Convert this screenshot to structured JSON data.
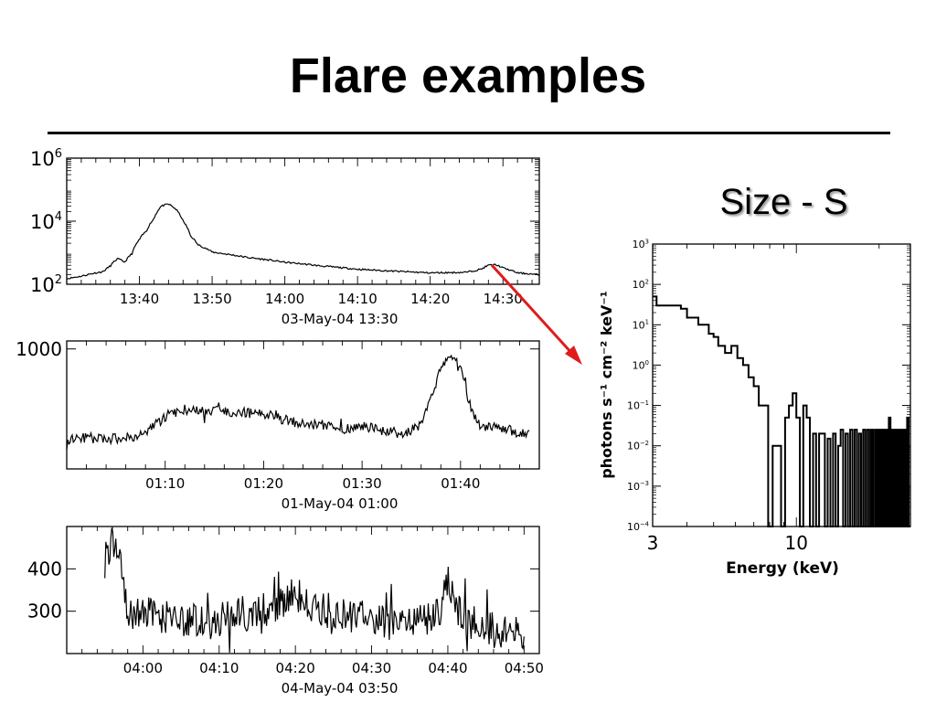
{
  "slide": {
    "title": "Flare examples",
    "size_label": "Size - S"
  },
  "colors": {
    "arrow": "#e01b1b",
    "ink": "#000000"
  },
  "chart_data": [
    {
      "type": "line",
      "title": "",
      "xlabel": "03-May-04 13:30",
      "ylabel": "",
      "yscale": "log",
      "xlim": [
        "13:30",
        "14:35"
      ],
      "ylim": [
        100,
        1000000
      ],
      "yticks": [
        {
          "value": 100,
          "base": "10",
          "exp": "2"
        },
        {
          "value": 10000,
          "base": "10",
          "exp": "4"
        },
        {
          "value": 1000000,
          "base": "10",
          "exp": "6"
        }
      ],
      "xticks": [
        "13:40",
        "13:50",
        "14:00",
        "14:10",
        "14:20",
        "14:30"
      ],
      "grid": false,
      "series": [
        {
          "x": [
            "13:30",
            "13:32",
            "13:34",
            "13:35",
            "13:36",
            "13:37",
            "13:38",
            "13:39",
            "13:40",
            "13:41",
            "13:42",
            "13:43",
            "13:44",
            "13:45",
            "13:46",
            "13:47",
            "13:48",
            "13:50",
            "13:52",
            "13:55",
            "14:00",
            "14:05",
            "14:10",
            "14:15",
            "14:20",
            "14:25",
            "14:27",
            "14:28",
            "14:29",
            "14:30",
            "14:32",
            "14:35"
          ],
          "y": [
            150,
            180,
            230,
            250,
            380,
            650,
            500,
            950,
            2600,
            5000,
            12000,
            30000,
            35000,
            24000,
            10000,
            3500,
            1800,
            1050,
            900,
            700,
            500,
            380,
            300,
            260,
            230,
            240,
            300,
            400,
            420,
            330,
            230,
            200
          ]
        }
      ]
    },
    {
      "type": "line",
      "title": "",
      "xlabel": "01-May-04 01:00",
      "ylabel": "",
      "xlim": [
        "01:00",
        "01:48"
      ],
      "ylim": [
        250,
        1050
      ],
      "yticks": [
        {
          "value": 1000,
          "label": "1000"
        }
      ],
      "xticks": [
        "01:10",
        "01:20",
        "01:30",
        "01:40"
      ],
      "grid": false,
      "series": [
        {
          "x": [
            "01:00",
            "01:02",
            "01:04",
            "01:06",
            "01:08",
            "01:10",
            "01:12",
            "01:14",
            "01:16",
            "01:18",
            "01:20",
            "01:22",
            "01:24",
            "01:26",
            "01:28",
            "01:30",
            "01:32",
            "01:34",
            "01:36",
            "01:37",
            "01:38",
            "01:39",
            "01:40",
            "01:41",
            "01:42",
            "01:44",
            "01:46",
            "01:47"
          ],
          "y": [
            440,
            445,
            438,
            440,
            470,
            580,
            620,
            605,
            615,
            600,
            595,
            560,
            525,
            525,
            500,
            520,
            490,
            470,
            520,
            680,
            880,
            980,
            880,
            640,
            520,
            510,
            470,
            470
          ]
        }
      ]
    },
    {
      "type": "line",
      "title": "",
      "xlabel": "04-May-04 03:50",
      "ylabel": "",
      "xlim": [
        "03:50",
        "04:52"
      ],
      "ylim": [
        200,
        500
      ],
      "yticks": [
        {
          "value": 300,
          "label": "300"
        },
        {
          "value": 400,
          "label": "400"
        }
      ],
      "xticks": [
        "04:00",
        "04:10",
        "04:20",
        "04:30",
        "04:40",
        "04:50"
      ],
      "grid": false,
      "series": [
        {
          "x": [
            "03:55",
            "03:56",
            "03:57",
            "03:58",
            "04:00",
            "04:02",
            "04:05",
            "04:08",
            "04:10",
            "04:13",
            "04:16",
            "04:19",
            "04:20",
            "04:22",
            "04:25",
            "04:28",
            "04:31",
            "04:34",
            "04:37",
            "04:39",
            "04:40",
            "04:41",
            "04:43",
            "04:46",
            "04:48",
            "04:50"
          ],
          "y": [
            420,
            460,
            430,
            300,
            300,
            280,
            285,
            270,
            280,
            290,
            305,
            330,
            345,
            305,
            300,
            290,
            275,
            270,
            280,
            305,
            385,
            310,
            275,
            255,
            255,
            240
          ]
        }
      ]
    },
    {
      "type": "line",
      "title": "",
      "xlabel": "Energy (keV)",
      "ylabel": "photons s⁻¹ cm⁻² keV⁻¹",
      "xscale": "log",
      "yscale": "log",
      "xlim": [
        3,
        26
      ],
      "ylim": [
        0.0001,
        1000
      ],
      "xticks": [
        {
          "value": 3,
          "label": "3"
        },
        {
          "value": 10,
          "label": "10"
        }
      ],
      "yticks": [
        {
          "value": 1000,
          "base": "10",
          "exp": "3"
        },
        {
          "value": 100,
          "base": "10",
          "exp": "2"
        },
        {
          "value": 10,
          "base": "10",
          "exp": "1"
        },
        {
          "value": 1,
          "base": "10",
          "exp": "0"
        },
        {
          "value": 0.1,
          "base": "10",
          "exp": "−1"
        },
        {
          "value": 0.01,
          "base": "10",
          "exp": "−2"
        },
        {
          "value": 0.001,
          "base": "10",
          "exp": "−3"
        },
        {
          "value": 0.0001,
          "base": "10",
          "exp": "−4"
        }
      ],
      "grid": false,
      "series": [
        {
          "step": true,
          "x": [
            3.0,
            3.1,
            3.3,
            3.6,
            3.8,
            4.0,
            4.2,
            4.4,
            4.6,
            4.8,
            5.0,
            5.2,
            5.5,
            5.8,
            6.1,
            6.4,
            6.7,
            7.0,
            7.3,
            7.6,
            7.9,
            8.2,
            8.5,
            8.8,
            9.1,
            9.4,
            9.7,
            10.0,
            10.3,
            10.6,
            10.9,
            11.2,
            11.5,
            11.8,
            12.1,
            12.4,
            12.7,
            13.0,
            13.3,
            13.6,
            13.9,
            14.2,
            14.5,
            14.8,
            15.1,
            15.4,
            15.7,
            16.0,
            16.3,
            16.6,
            16.9,
            17.2,
            17.5,
            17.8,
            18.1,
            18.4,
            18.7,
            19.0,
            19.3,
            19.6,
            19.9,
            20.2,
            20.5,
            20.8,
            21.1,
            21.4,
            21.7,
            22.0,
            22.3,
            22.6,
            22.9,
            23.2,
            23.5,
            23.8,
            24.1,
            24.4,
            24.7,
            25.0,
            25.3,
            25.6,
            26.0
          ],
          "y": [
            50,
            30,
            30,
            30,
            25,
            15,
            15,
            10,
            10,
            6,
            5,
            3,
            2,
            3,
            1.5,
            1,
            0.5,
            0.3,
            0.1,
            0.1,
            0.0001,
            0.01,
            0.01,
            0.0001,
            0.05,
            0.1,
            0.2,
            0.05,
            0.0001,
            0.1,
            0.05,
            0.0001,
            0.02,
            0.0001,
            0.02,
            0.02,
            0.0001,
            0.015,
            0.0001,
            0.02,
            0.0001,
            0.01,
            0.025,
            0.0001,
            0.02,
            0.0001,
            0.025,
            0.0001,
            0.025,
            0.0001,
            0.02,
            0.0001,
            0.025,
            0.0001,
            0.025,
            0.0001,
            0.025,
            0.0001,
            0.025,
            0.0001,
            0.025,
            0.0001,
            0.025,
            0.0001,
            0.025,
            0.0001,
            0.05,
            0.0001,
            0.025,
            0.0001,
            0.025,
            0.0001,
            0.025,
            0.0001,
            0.025,
            0.0001,
            0.025,
            0.0001,
            0.05,
            0.0001,
            0.01
          ]
        }
      ]
    }
  ]
}
